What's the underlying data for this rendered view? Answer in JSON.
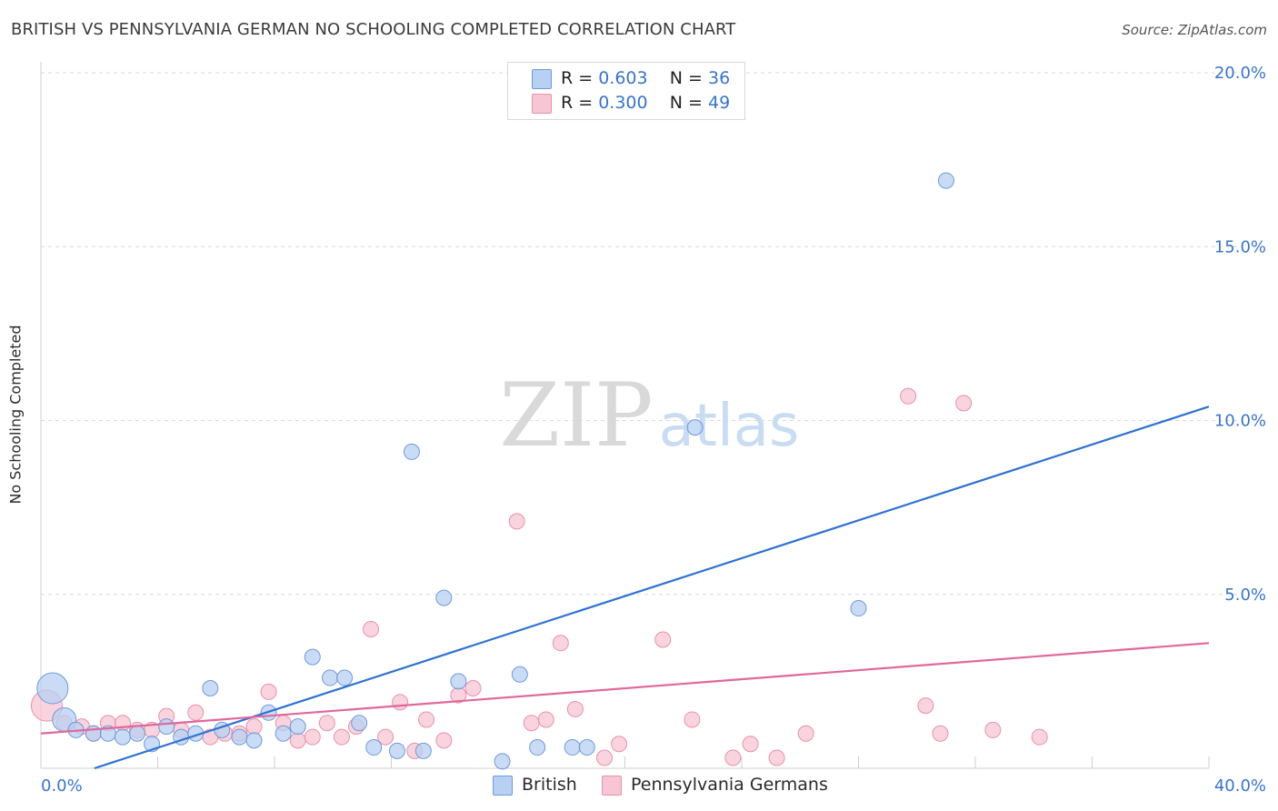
{
  "title": "BRITISH VS PENNSYLVANIA GERMAN NO SCHOOLING COMPLETED CORRELATION CHART",
  "source": "Source: ZipAtlas.com",
  "watermark": {
    "zip": "ZIP",
    "atlas": "atlas"
  },
  "stats": {
    "british": {
      "r_label": "R =",
      "r": "0.603",
      "n_label": "N =",
      "n": "36"
    },
    "penn": {
      "r_label": "R =",
      "r": "0.300",
      "n_label": "N =",
      "n": "49"
    }
  },
  "legend": {
    "british": "British",
    "penn": "Pennsylvania Germans"
  },
  "colors": {
    "british_fill": "#b8d0f2",
    "british_stroke": "#6f9ad8",
    "british_line": "#2f72d0",
    "penn_fill": "#f7c5d3",
    "penn_stroke": "#e891ab",
    "penn_line": "#e0689a",
    "tick_text": "#3a74c9",
    "grid": "#d9d9d9"
  },
  "chart_data": {
    "type": "scatter",
    "title": "BRITISH VS PENNSYLVANIA GERMAN NO SCHOOLING COMPLETED CORRELATION CHART",
    "xlabel": "",
    "ylabel": "No Schooling Completed",
    "xlim": [
      0,
      40
    ],
    "ylim": [
      0,
      20
    ],
    "x_tick_labels": [
      {
        "value": 0,
        "label": "0.0%"
      },
      {
        "value": 40,
        "label": "40.0%"
      }
    ],
    "y_tick_labels": [
      {
        "value": 5,
        "label": "5.0%"
      },
      {
        "value": 10,
        "label": "10.0%"
      },
      {
        "value": 15,
        "label": "15.0%"
      },
      {
        "value": 20,
        "label": "20.0%"
      }
    ],
    "grid": true,
    "series": [
      {
        "name": "British",
        "r": 0.603,
        "n": 36,
        "trend": [
          [
            0,
            -0.5
          ],
          [
            40,
            10.4
          ]
        ],
        "points": [
          [
            0.4,
            2.3,
            "big"
          ],
          [
            0.8,
            1.4,
            "mid"
          ],
          [
            1.2,
            1.1
          ],
          [
            1.8,
            1.0
          ],
          [
            2.3,
            1.0
          ],
          [
            2.8,
            0.9
          ],
          [
            3.3,
            1.0
          ],
          [
            3.8,
            0.7
          ],
          [
            4.3,
            1.2
          ],
          [
            4.8,
            0.9
          ],
          [
            5.3,
            1.0
          ],
          [
            5.8,
            2.3
          ],
          [
            6.2,
            1.1
          ],
          [
            6.8,
            0.9
          ],
          [
            7.3,
            0.8
          ],
          [
            7.8,
            1.6
          ],
          [
            8.3,
            1.0
          ],
          [
            8.8,
            1.2
          ],
          [
            9.3,
            3.2
          ],
          [
            9.9,
            2.6
          ],
          [
            10.4,
            2.6
          ],
          [
            10.9,
            1.3
          ],
          [
            11.4,
            0.6
          ],
          [
            12.2,
            0.5
          ],
          [
            12.7,
            9.1
          ],
          [
            13.1,
            0.5
          ],
          [
            13.8,
            4.9
          ],
          [
            14.3,
            2.5
          ],
          [
            15.8,
            0.2
          ],
          [
            16.4,
            2.7
          ],
          [
            17.0,
            0.6
          ],
          [
            18.2,
            0.6
          ],
          [
            18.7,
            0.6
          ],
          [
            22.4,
            9.8
          ],
          [
            28.0,
            4.6
          ],
          [
            31.0,
            16.9
          ]
        ]
      },
      {
        "name": "Pennsylvania Germans",
        "r": 0.3,
        "n": 49,
        "trend": [
          [
            0,
            1.0
          ],
          [
            40,
            3.6
          ]
        ],
        "points": [
          [
            0.2,
            1.8,
            "big"
          ],
          [
            0.8,
            1.3
          ],
          [
            1.4,
            1.2
          ],
          [
            1.8,
            1.0
          ],
          [
            2.3,
            1.3
          ],
          [
            2.8,
            1.3
          ],
          [
            3.3,
            1.1
          ],
          [
            3.8,
            1.1
          ],
          [
            4.3,
            1.5
          ],
          [
            4.8,
            1.1
          ],
          [
            5.3,
            1.6
          ],
          [
            5.8,
            0.9
          ],
          [
            6.3,
            1.0
          ],
          [
            6.8,
            1.0
          ],
          [
            7.3,
            1.2
          ],
          [
            7.8,
            2.2
          ],
          [
            8.3,
            1.3
          ],
          [
            8.8,
            0.8
          ],
          [
            9.3,
            0.9
          ],
          [
            9.8,
            1.3
          ],
          [
            10.3,
            0.9
          ],
          [
            10.8,
            1.2
          ],
          [
            11.3,
            4.0
          ],
          [
            11.8,
            0.9
          ],
          [
            12.3,
            1.9
          ],
          [
            12.8,
            0.5
          ],
          [
            13.2,
            1.4
          ],
          [
            13.8,
            0.8
          ],
          [
            14.3,
            2.1
          ],
          [
            14.8,
            2.3
          ],
          [
            16.3,
            7.1
          ],
          [
            16.8,
            1.3
          ],
          [
            17.3,
            1.4
          ],
          [
            17.8,
            3.6
          ],
          [
            18.3,
            1.7
          ],
          [
            19.3,
            0.3
          ],
          [
            19.8,
            0.7
          ],
          [
            21.3,
            3.7
          ],
          [
            22.3,
            1.4
          ],
          [
            23.7,
            0.3
          ],
          [
            24.3,
            0.7
          ],
          [
            25.2,
            0.3
          ],
          [
            26.2,
            1.0
          ],
          [
            29.7,
            10.7
          ],
          [
            30.3,
            1.8
          ],
          [
            30.8,
            1.0
          ],
          [
            31.6,
            10.5
          ],
          [
            32.6,
            1.1
          ],
          [
            34.2,
            0.9
          ]
        ]
      }
    ]
  }
}
